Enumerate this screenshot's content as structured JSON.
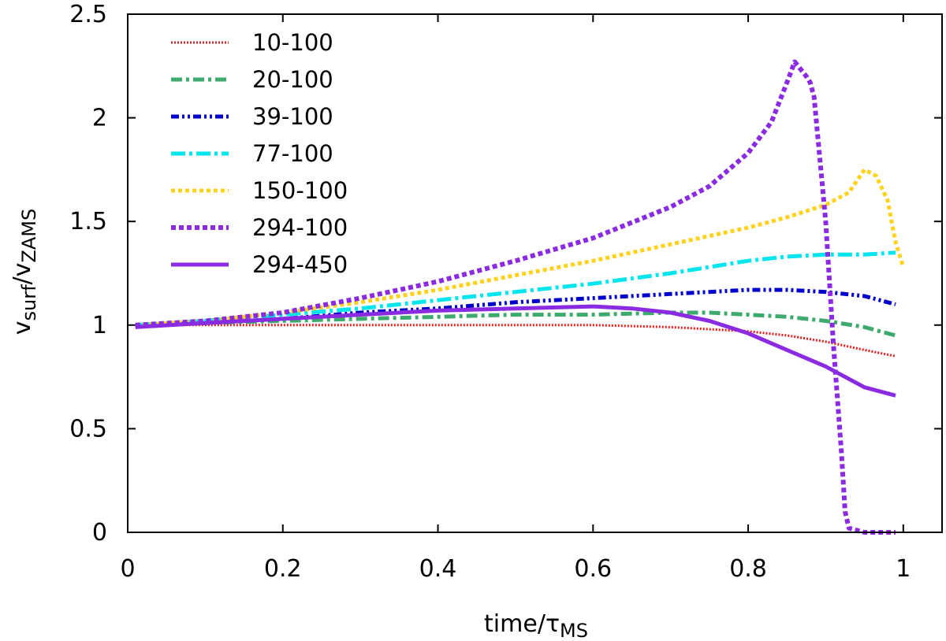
{
  "chart_data": {
    "type": "line",
    "title": "",
    "xlabel": {
      "main": "time/",
      "symbol": "τ",
      "subscript": "MS"
    },
    "ylabel": {
      "v1": "v",
      "sub1": "surf",
      "slash": "/",
      "v2": "v",
      "sub2": "ZAMS"
    },
    "xlim": [
      0,
      1.05
    ],
    "ylim": [
      0,
      2.5
    ],
    "x_ticks": [
      0,
      0.2,
      0.4,
      0.6,
      0.8,
      1
    ],
    "y_ticks": [
      0,
      0.5,
      1,
      1.5,
      2,
      2.5
    ],
    "x_tick_labels": [
      "0",
      "0.2",
      "0.4",
      "0.6",
      "0.8",
      "1"
    ],
    "y_tick_labels": [
      "0",
      "0.5",
      "1",
      "1.5",
      "2",
      "2.5"
    ],
    "grid": false,
    "legend_position": "top-left",
    "series": [
      {
        "name": "10-100",
        "color": "#e41a1c",
        "dash": "dotted-fine",
        "x": [
          0.01,
          0.1,
          0.2,
          0.3,
          0.4,
          0.5,
          0.6,
          0.7,
          0.75,
          0.8,
          0.85,
          0.9,
          0.95,
          0.99
        ],
        "y": [
          1.0,
          1.0,
          1.0,
          1.0,
          1.0,
          1.0,
          1.0,
          0.99,
          0.98,
          0.97,
          0.95,
          0.92,
          0.88,
          0.85
        ]
      },
      {
        "name": "20-100",
        "color": "#3daa6e",
        "dash": "dash-dot",
        "x": [
          0.01,
          0.1,
          0.2,
          0.3,
          0.4,
          0.5,
          0.6,
          0.7,
          0.75,
          0.8,
          0.85,
          0.9,
          0.95,
          0.99
        ],
        "y": [
          1.0,
          1.01,
          1.02,
          1.03,
          1.04,
          1.05,
          1.05,
          1.06,
          1.06,
          1.05,
          1.04,
          1.02,
          0.99,
          0.95
        ]
      },
      {
        "name": "39-100",
        "color": "#0000cc",
        "dash": "dash-dot-dot",
        "x": [
          0.01,
          0.1,
          0.2,
          0.3,
          0.4,
          0.5,
          0.6,
          0.7,
          0.75,
          0.8,
          0.85,
          0.9,
          0.95,
          0.99
        ],
        "y": [
          1.0,
          1.01,
          1.03,
          1.06,
          1.08,
          1.11,
          1.13,
          1.15,
          1.16,
          1.17,
          1.17,
          1.16,
          1.14,
          1.1
        ]
      },
      {
        "name": "77-100",
        "color": "#00e5ee",
        "dash": "dash-dot-long",
        "x": [
          0.01,
          0.1,
          0.2,
          0.3,
          0.4,
          0.5,
          0.6,
          0.7,
          0.75,
          0.8,
          0.85,
          0.9,
          0.95,
          0.99
        ],
        "y": [
          1.0,
          1.02,
          1.05,
          1.08,
          1.12,
          1.16,
          1.2,
          1.25,
          1.28,
          1.31,
          1.33,
          1.34,
          1.34,
          1.35
        ]
      },
      {
        "name": "150-100",
        "color": "#ffd11a",
        "dash": "dotted",
        "x": [
          0.01,
          0.1,
          0.2,
          0.3,
          0.4,
          0.5,
          0.6,
          0.7,
          0.8,
          0.85,
          0.9,
          0.93,
          0.95,
          0.965,
          0.98,
          0.99,
          1.0
        ],
        "y": [
          1.0,
          1.02,
          1.06,
          1.11,
          1.17,
          1.24,
          1.31,
          1.39,
          1.47,
          1.52,
          1.58,
          1.64,
          1.75,
          1.72,
          1.6,
          1.4,
          1.28
        ]
      },
      {
        "name": "294-100",
        "color": "#8a2be2",
        "dash": "dotted-thick",
        "x": [
          0.01,
          0.1,
          0.2,
          0.3,
          0.4,
          0.5,
          0.6,
          0.7,
          0.75,
          0.8,
          0.83,
          0.85,
          0.86,
          0.875,
          0.88,
          0.885,
          0.9,
          0.91,
          0.92,
          0.925,
          0.93,
          0.95,
          0.99
        ],
        "y": [
          1.0,
          1.02,
          1.06,
          1.13,
          1.21,
          1.31,
          1.42,
          1.57,
          1.67,
          1.83,
          1.98,
          2.17,
          2.27,
          2.2,
          2.17,
          2.1,
          1.5,
          0.9,
          0.4,
          0.1,
          0.02,
          0.0,
          0.0
        ]
      },
      {
        "name": "294-450",
        "color": "#8a2be2",
        "dash": "solid",
        "x": [
          0.01,
          0.1,
          0.2,
          0.3,
          0.4,
          0.5,
          0.6,
          0.65,
          0.7,
          0.75,
          0.8,
          0.85,
          0.9,
          0.95,
          0.99
        ],
        "y": [
          0.99,
          1.01,
          1.03,
          1.05,
          1.07,
          1.08,
          1.09,
          1.08,
          1.06,
          1.02,
          0.96,
          0.88,
          0.8,
          0.7,
          0.66
        ]
      }
    ]
  }
}
